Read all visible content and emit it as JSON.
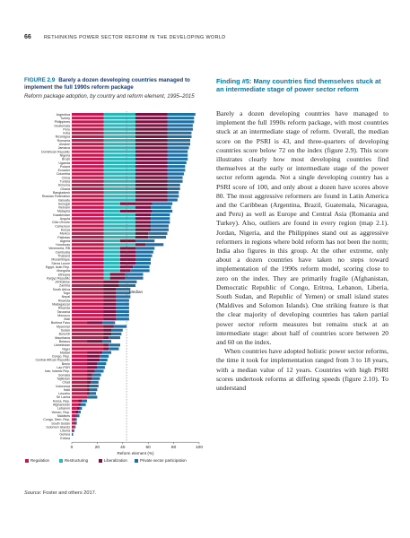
{
  "header": {
    "page_number": "66",
    "running_title": "RETHINKING POWER SECTOR REFORM IN THE DEVELOPING WORLD"
  },
  "figure": {
    "number": "FIGURE 2.9",
    "title": "Barely a dozen developing countries managed to implement the full 1990s reform package",
    "subtitle": "Reform package adoption, by country and reform element, 1995–2015",
    "source_label": "Source:",
    "source_text": "Foster and others 2017."
  },
  "chart_data": {
    "type": "bar",
    "orientation": "horizontal",
    "stacked": true,
    "categories": [
      "Argentina",
      "Turkey",
      "Philippines",
      "Guatemala",
      "Peru",
      "India",
      "Nicaragua",
      "Romania",
      "Ukraine",
      "Jamaica",
      "Dominican Republic",
      "Nigeria",
      "Brazil",
      "Uganda",
      "Poland",
      "Ecuador",
      "Colombia",
      "China",
      "Tunisia",
      "Armenia",
      "Ghana",
      "Bangladesh",
      "Russian Federation",
      "Vanuatu",
      "Senegal",
      "Vietnam",
      "Malaysia",
      "Kazakhstan",
      "Angola",
      "Côte d'Ivoire",
      "Cameroon",
      "Kenya",
      "Mexico",
      "Pakistan",
      "Algeria",
      "Honduras",
      "Venezuela, RB",
      "Cambodia",
      "Thailand",
      "Mozambique",
      "Sierra Leone",
      "Egypt, Arab Rep.",
      "Mongolia",
      "Ethiopia",
      "Kyrgyz Republic",
      "Zimbabwe",
      "Zambia",
      "South Africa",
      "Togo",
      "Nepal",
      "Rwanda",
      "Madagascar",
      "Rwanda",
      "Tanzania",
      "Morocco",
      "Mali",
      "Burkina Faso",
      "Myanmar",
      "Sudan",
      "Burundi",
      "Mauritania",
      "Belarus",
      "Uzbekistan",
      "Niger",
      "Malawi",
      "Congo, Rep.",
      "Central African Republic",
      "Benin",
      "Lao PDR",
      "Iran, Islamic Rep.",
      "Somalia",
      "Tajikistan",
      "Chad",
      "Indonesia",
      "Haiti",
      "Lesotho",
      "Sri Lanka",
      "Korea, Rep.",
      "Afghanistan",
      "Lebanon",
      "Yemen, Rep.",
      "Maldives",
      "Congo, Dem. Rep.",
      "South Sudan",
      "Solomon Islands",
      "Liberia",
      "Guinea",
      "Eritrea"
    ],
    "series": [
      {
        "name": "Regulation",
        "color": "#c8174f",
        "values": [
          25,
          25,
          25,
          25,
          25,
          25,
          25,
          25,
          25,
          25,
          25,
          25,
          25,
          25,
          25,
          25,
          25,
          25,
          25,
          25,
          25,
          25,
          25,
          25,
          25,
          25,
          25,
          25,
          25,
          25,
          25,
          25,
          25,
          25,
          25,
          25,
          25,
          25,
          25,
          25,
          25,
          25,
          25,
          25,
          25,
          25,
          25,
          25,
          25,
          25,
          25,
          25,
          25,
          25,
          25,
          25,
          12,
          25,
          25,
          25,
          25,
          12,
          25,
          25,
          12,
          12,
          12,
          12,
          12,
          12,
          12,
          12,
          12,
          12,
          12,
          12,
          12,
          5,
          5,
          4,
          3,
          3,
          2,
          2,
          2,
          1,
          0,
          0
        ]
      },
      {
        "name": "Restructuring",
        "color": "#2bb5b8",
        "values": [
          25,
          25,
          25,
          25,
          25,
          25,
          25,
          25,
          25,
          25,
          25,
          25,
          25,
          25,
          25,
          25,
          25,
          25,
          25,
          25,
          25,
          25,
          25,
          25,
          13,
          25,
          13,
          25,
          25,
          25,
          25,
          25,
          25,
          25,
          13,
          25,
          13,
          13,
          13,
          13,
          13,
          13,
          13,
          5,
          5,
          0,
          0,
          0,
          0,
          0,
          0,
          0,
          0,
          0,
          0,
          0,
          0,
          0,
          0,
          0,
          0,
          0,
          0,
          0,
          0,
          0,
          0,
          0,
          0,
          0,
          0,
          0,
          0,
          0,
          0,
          0,
          0,
          0,
          0,
          0,
          0,
          0,
          0,
          0,
          0,
          0,
          0,
          0
        ]
      },
      {
        "name": "Liberalization",
        "color": "#7b1240",
        "values": [
          25,
          25,
          25,
          25,
          25,
          25,
          25,
          25,
          25,
          25,
          25,
          25,
          25,
          25,
          25,
          25,
          25,
          25,
          25,
          25,
          25,
          25,
          25,
          25,
          25,
          12,
          25,
          12,
          12,
          12,
          12,
          12,
          10,
          10,
          12,
          8,
          12,
          12,
          12,
          12,
          12,
          10,
          8,
          12,
          12,
          12,
          12,
          10,
          10,
          10,
          10,
          10,
          10,
          10,
          10,
          10,
          12,
          8,
          6,
          6,
          4,
          12,
          4,
          4,
          12,
          10,
          10,
          8,
          8,
          6,
          4,
          4,
          3,
          2,
          2,
          2,
          0,
          3,
          2,
          2,
          2,
          1,
          1,
          1,
          0,
          0,
          0,
          0
        ]
      },
      {
        "name": "Private sector participation",
        "color": "#1e6fa3",
        "values": [
          22,
          21,
          21,
          20,
          20,
          19,
          19,
          18,
          18,
          17,
          16,
          16,
          16,
          15,
          14,
          14,
          13,
          12,
          12,
          10,
          10,
          9,
          9,
          8,
          16,
          16,
          16,
          15,
          15,
          15,
          14,
          14,
          15,
          14,
          15,
          14,
          15,
          14,
          13,
          12,
          12,
          13,
          15,
          14,
          14,
          14,
          13,
          11,
          11,
          11,
          10,
          10,
          10,
          10,
          10,
          10,
          10,
          10,
          9,
          8,
          9,
          7,
          9,
          8,
          7,
          7,
          6,
          7,
          6,
          7,
          7,
          6,
          6,
          7,
          6,
          5,
          8,
          4,
          4,
          2,
          2,
          2,
          1,
          1,
          1,
          1,
          1,
          0
        ]
      }
    ],
    "xlim": [
      0,
      100
    ],
    "xticks": [
      0,
      20,
      40,
      60,
      80,
      100
    ],
    "xlabel": "Reform element (%)",
    "median": 43,
    "median_label": "Median",
    "legend_position": "bottom"
  },
  "article": {
    "finding_title": "Finding #5: Many countries find themselves stuck at an intermediate stage of power sector reform",
    "paragraphs": [
      "Barely a dozen developing countries have managed to implement the full 1990s reform package, with most countries stuck at an intermediate stage of reform. Overall, the median score on the PSRI is 43, and three-quarters of developing countries score below 72 on the index (figure 2.9). This score illustrates clearly how most developing countries find themselves at the early or intermediate stage of the power sector reform agenda. Not a single developing country has a PSRI score of 100, and only about a dozen have scores above 80. The most aggressive reformers are found in Latin America and the Caribbean (Argentina, Brazil, Guatemala, Nicaragua, and Peru) as well as Europe and Central Asia (Romania and Turkey). Also, outliers are found in every region (map 2.1). Jordan, Nigeria, and the Philippines stand out as aggressive reformers in regions where bold reform has not been the norm; India also figures in this group. At the other extreme, only about a dozen countries have taken no steps toward implementation of the 1990s reform model, scoring close to zero on the index. They are primarily fragile (Afghanistan, Democratic Republic of Congo, Eritrea, Lebanon, Liberia, South Sudan, and Republic of Yemen) or small island states (Maldives and Solomon Islands). One striking feature is that the clear majority of developing countries has taken partial power sector reform measures but remains stuck at an intermediate stage: about half of countries score between 20 and 60 on the index.",
      "When countries have adopted holistic power sector reforms, the time it took for implementation ranged from 3 to 18 years, with a median value of 12 years. Countries with high PSRI scores undertook reforms at differing speeds (figure 2.10). To understand"
    ]
  }
}
